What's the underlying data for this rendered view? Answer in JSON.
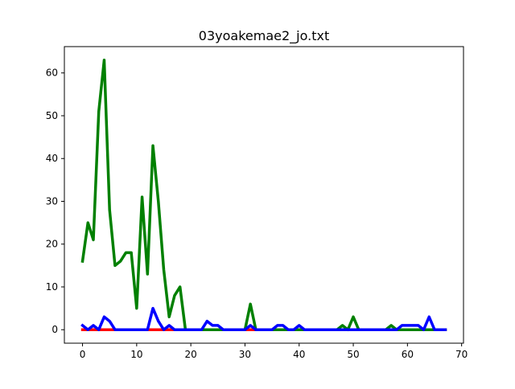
{
  "chart_data": {
    "type": "line",
    "title": "03yoakemae2_jo.txt",
    "xlabel": "",
    "ylabel": "",
    "xlim": [
      -3.35,
      70.35
    ],
    "ylim": [
      -3.15,
      66.15
    ],
    "x_ticks": [
      0,
      10,
      20,
      30,
      40,
      50,
      60,
      70
    ],
    "y_ticks": [
      0,
      10,
      20,
      30,
      40,
      50,
      60
    ],
    "grid": false,
    "legend": false,
    "series": [
      {
        "color": "#ff0000",
        "values": [
          0,
          0,
          0,
          0,
          0,
          0,
          0,
          0,
          0,
          0,
          0,
          0,
          0,
          0,
          0,
          0,
          0,
          0,
          0,
          0,
          0,
          0,
          0,
          0,
          0,
          0,
          0,
          0,
          0,
          0,
          0,
          0,
          0,
          0,
          0,
          0,
          0,
          0,
          0,
          0,
          0,
          0,
          0,
          0,
          0,
          0,
          0,
          0,
          0,
          0,
          0,
          0,
          0,
          0,
          0,
          0,
          0,
          0,
          0,
          0,
          0,
          0,
          0,
          0,
          0,
          0,
          0,
          0
        ]
      },
      {
        "color": "#008000",
        "values": [
          16,
          25,
          21,
          51,
          63,
          28,
          15,
          16,
          18,
          18,
          5,
          31,
          13,
          43,
          30,
          14,
          3,
          8,
          10,
          0,
          0,
          0,
          0,
          0,
          0,
          0,
          0,
          0,
          0,
          0,
          0,
          6,
          0,
          0,
          0,
          0,
          0,
          0,
          0,
          0,
          0,
          0,
          0,
          0,
          0,
          0,
          0,
          0,
          1,
          0,
          3,
          0,
          0,
          0,
          0,
          0,
          0,
          1,
          0,
          0,
          0,
          0,
          0,
          0,
          0,
          0,
          0,
          0
        ]
      },
      {
        "color": "#0000ff",
        "values": [
          1,
          0,
          1,
          0,
          3,
          2,
          0,
          0,
          0,
          0,
          0,
          0,
          0,
          5,
          2,
          0,
          1,
          0,
          0,
          0,
          0,
          0,
          0,
          2,
          1,
          1,
          0,
          0,
          0,
          0,
          0,
          1,
          0,
          0,
          0,
          0,
          1,
          1,
          0,
          0,
          1,
          0,
          0,
          0,
          0,
          0,
          0,
          0,
          0,
          0,
          0,
          0,
          0,
          0,
          0,
          0,
          0,
          0,
          0,
          1,
          1,
          1,
          1,
          0,
          3,
          0,
          0,
          0
        ]
      }
    ]
  }
}
